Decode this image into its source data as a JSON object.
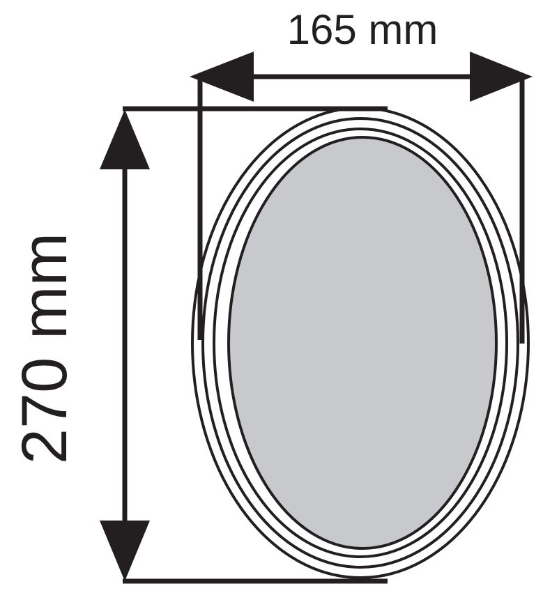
{
  "dimensions": {
    "width_label": "165 mm",
    "height_label": "270 mm"
  },
  "colors": {
    "line": "#231f20",
    "plate_fill": "#c8c9cc",
    "frame_fill": "#ffffff",
    "background": "#ffffff"
  }
}
